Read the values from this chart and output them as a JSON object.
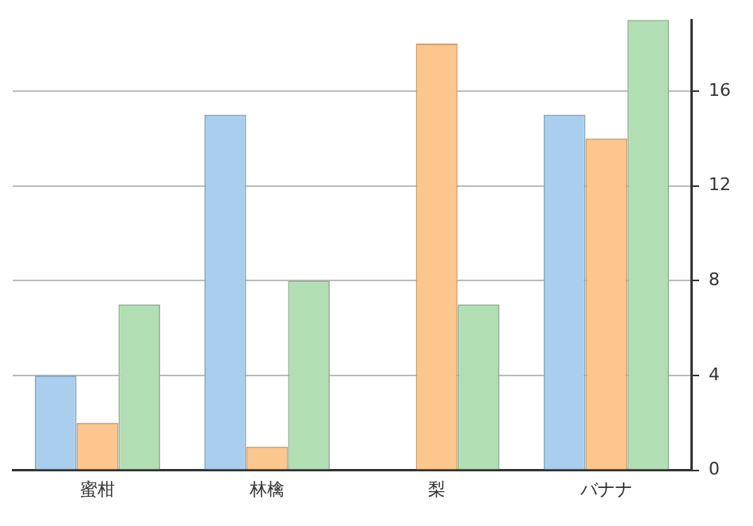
{
  "chart_data": {
    "type": "bar",
    "categories": [
      "蜜柑",
      "林檎",
      "梨",
      "バナナ"
    ],
    "series": [
      {
        "color": "#aacfee",
        "values": [
          4,
          15,
          null,
          15
        ]
      },
      {
        "color": "#fdc68c",
        "values": [
          2,
          1,
          18,
          14
        ]
      },
      {
        "color": "#b2deb4",
        "values": [
          7,
          8,
          7,
          19
        ]
      }
    ],
    "ylim": [
      0,
      19
    ],
    "yticks": [
      0,
      4,
      8,
      12,
      16
    ],
    "grid": "y",
    "legend": false
  }
}
